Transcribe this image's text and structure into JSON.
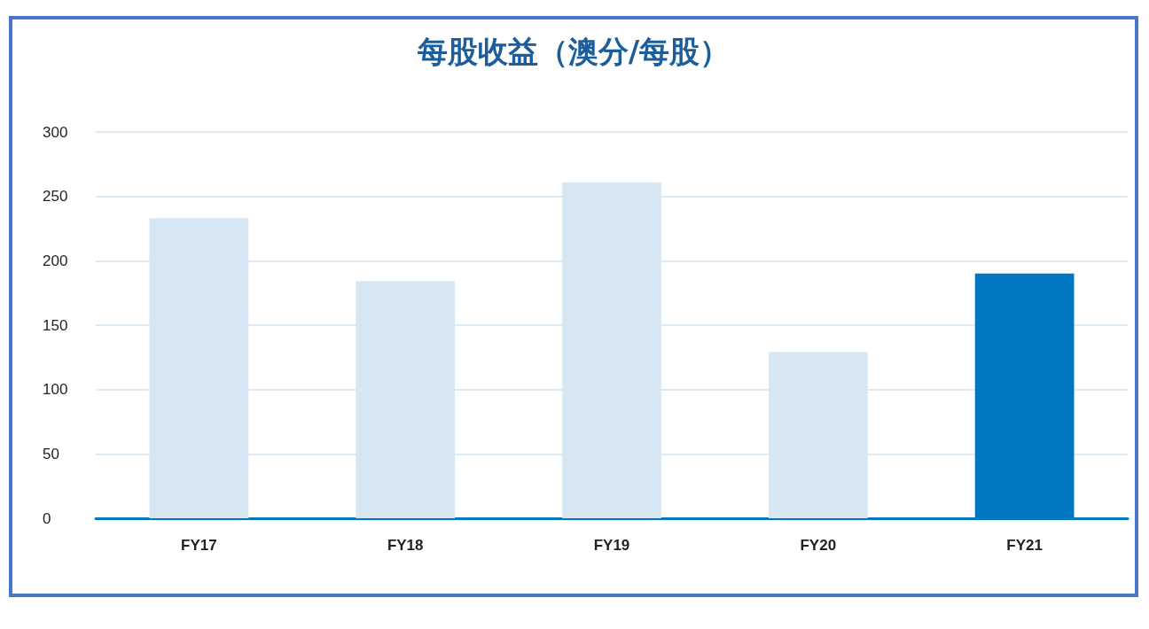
{
  "chart_data": {
    "type": "bar",
    "title": "每股收益（澳分/每股）",
    "categories": [
      "FY17",
      "FY18",
      "FY19",
      "FY20",
      "FY21"
    ],
    "values": [
      233,
      184,
      261,
      129,
      190
    ],
    "colors": [
      "#d6e6f2",
      "#d6e6f2",
      "#d6e6f2",
      "#d6e6f2",
      "#0077c0"
    ],
    "ylim": [
      0,
      300
    ],
    "yticks": [
      0,
      50,
      100,
      150,
      200,
      250,
      300
    ],
    "grid": "y"
  }
}
